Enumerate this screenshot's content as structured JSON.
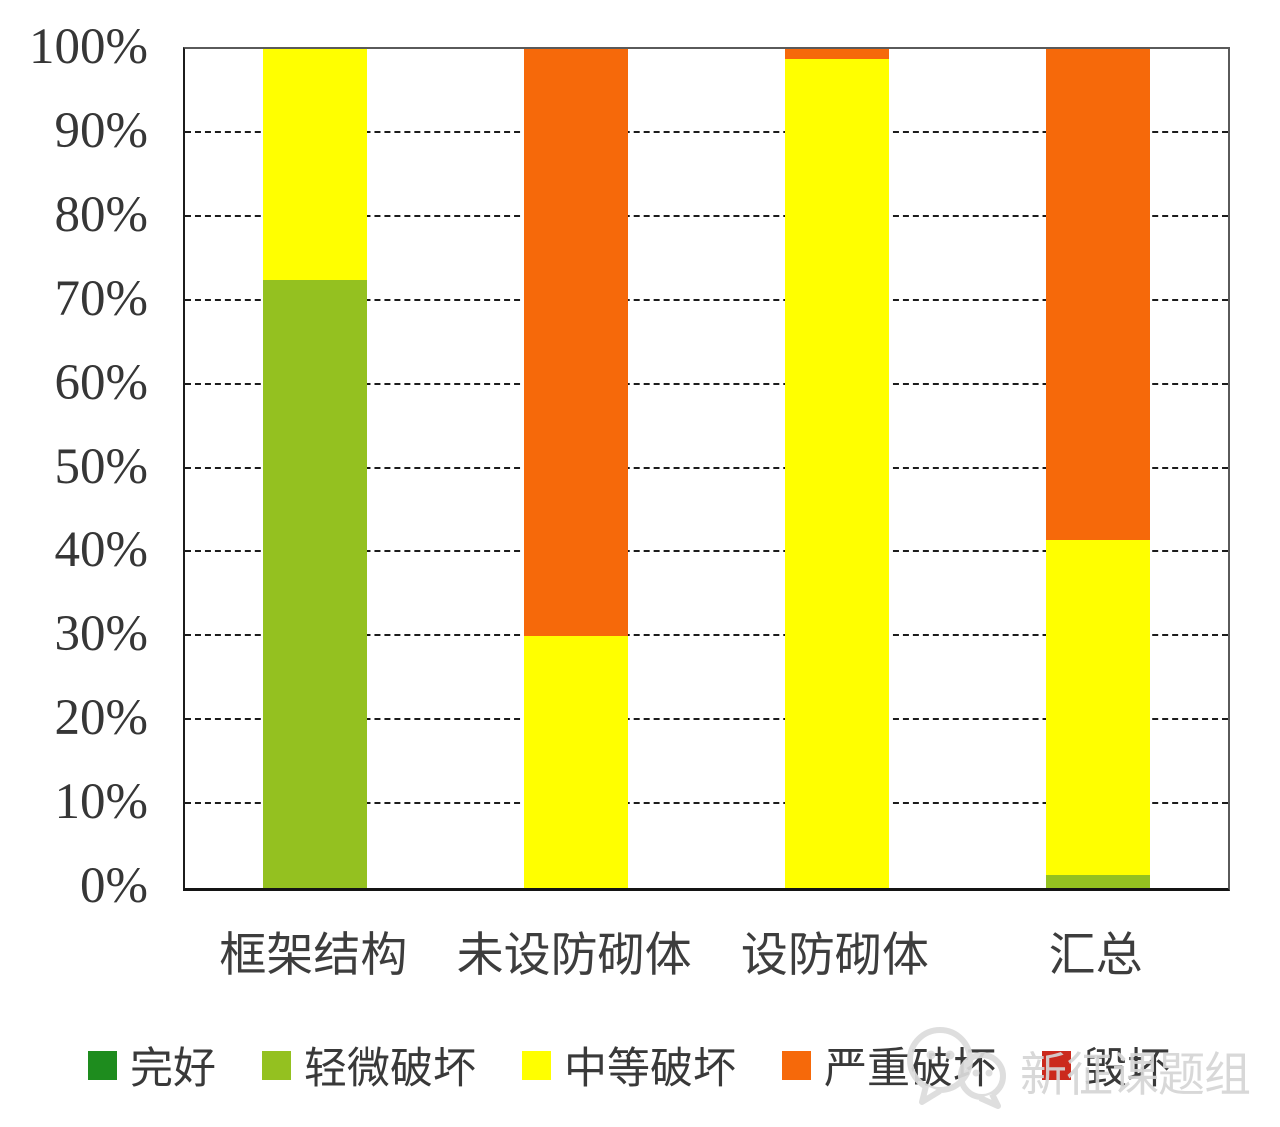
{
  "watermark": {
    "text": "新征课题组",
    "color": "#d5d5d5",
    "icon": "wechat-doodle-icon"
  },
  "chart_data": {
    "type": "bar",
    "variant": "100%-stacked-column",
    "title": "",
    "xlabel": "",
    "ylabel": "",
    "categories": [
      "框架结构",
      "未设防砌体",
      "设防砌体",
      "汇总"
    ],
    "series": [
      {
        "name": "完好",
        "color": "#1e8c1e",
        "values": [
          0,
          0,
          0,
          0
        ]
      },
      {
        "name": "轻微破坏",
        "color": "#94c120",
        "values": [
          72.5,
          0,
          0,
          1.5
        ]
      },
      {
        "name": "中等破坏",
        "color": "#ffff00",
        "values": [
          27.5,
          30,
          98.8,
          40
        ]
      },
      {
        "name": "严重破坏",
        "color": "#f6690a",
        "values": [
          0,
          70,
          1.2,
          58.5
        ]
      },
      {
        "name": "毁坏",
        "color": "#cb2a1d",
        "values": [
          0,
          0,
          0,
          0
        ]
      }
    ],
    "ylim": [
      0,
      100
    ],
    "ytick_step": 10,
    "ytick_labels": [
      "0%",
      "10%",
      "20%",
      "30%",
      "40%",
      "50%",
      "60%",
      "70%",
      "80%",
      "90%",
      "100%"
    ],
    "grid": "horizontal-dashed",
    "legend_position": "bottom"
  }
}
